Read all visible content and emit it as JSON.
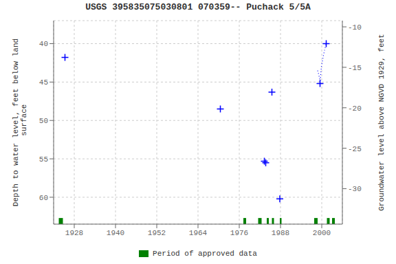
{
  "chart_data": {
    "type": "scatter",
    "title": "USGS 395835075030801 070359-- Puchack 5/5A",
    "ylabel": "Depth to water level, feet below land\n surface",
    "y2label": "Groundwater level above NGVD 1929, feet",
    "xlim": [
      1922,
      2006
    ],
    "xticks": [
      1928,
      1940,
      1952,
      1964,
      1976,
      1988,
      2000
    ],
    "ylim": [
      63.5,
      37.0
    ],
    "yticks": [
      40,
      45,
      50,
      55,
      60
    ],
    "y2lim": [
      -34.38,
      -9.23
    ],
    "y2ticks": [
      -10,
      -15,
      -20,
      -25,
      -30
    ],
    "grid": true,
    "legend": "bottom",
    "series": [
      {
        "type": "scatter",
        "marker": "plus",
        "color": "blue",
        "x": [
          1925.3,
          1970.5,
          1983.3,
          1983.7,
          1985.5,
          1987.8,
          1999.5,
          2001.3
        ],
        "values": [
          41.8,
          48.5,
          55.3,
          55.5,
          46.3,
          60.2,
          45.2,
          40.0
        ]
      },
      {
        "type": "line",
        "line_style": "dotted",
        "color": "blue",
        "x": [
          1998.8,
          1999.0,
          1999.2,
          1999.4,
          1999.5,
          1999.7,
          1999.9,
          2000.1,
          2000.3,
          2000.5,
          2001.0,
          2001.3
        ],
        "values": [
          43.5,
          43.8,
          44.2,
          44.6,
          45.2,
          44.0,
          43.0,
          42.5,
          42.0,
          41.5,
          40.5,
          40.0
        ]
      },
      {
        "type": "bar",
        "name": "Period of approved data",
        "color": "#008000",
        "x": [
          1923.5,
          1977.2,
          1981.5,
          1984.0,
          1985.5,
          1987.8,
          1997.8,
          2001.5,
          2003.0
        ],
        "widths": [
          1.2,
          0.8,
          1.0,
          0.6,
          0.6,
          0.5,
          1.0,
          0.8,
          0.8
        ]
      }
    ]
  }
}
